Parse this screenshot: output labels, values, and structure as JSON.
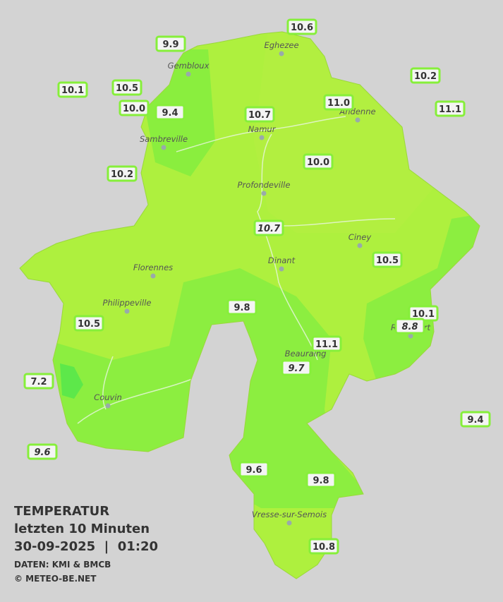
{
  "header": {
    "title": "TEMPERATUR",
    "subtitle": "letzten 10 Minuten",
    "timestamp": "30-09-2025  |  01:20",
    "source": "DATEN: KMI & BMCB",
    "copyright": "© METEO-BE.NET"
  },
  "cities": [
    "Eghezee",
    "Gembloux",
    "Andenne",
    "Namur",
    "Sambreville",
    "Profondeville",
    "Ciney",
    "Florennes",
    "Dinant",
    "Philippeville",
    "Rochefort",
    "Beauraing",
    "Couvin",
    "Vresse-sur-Semois"
  ],
  "stations": [
    {
      "label": "10.6",
      "italic": false
    },
    {
      "label": "9.9",
      "italic": false
    },
    {
      "label": "10.2",
      "italic": false
    },
    {
      "label": "10.1",
      "italic": false
    },
    {
      "label": "10.5",
      "italic": false
    },
    {
      "label": "10.0",
      "italic": false
    },
    {
      "label": "9.4",
      "italic": false
    },
    {
      "label": "11.0",
      "italic": false
    },
    {
      "label": "11.1",
      "italic": false
    },
    {
      "label": "10.7",
      "italic": false
    },
    {
      "label": "10.0",
      "italic": false
    },
    {
      "label": "10.2",
      "italic": false
    },
    {
      "label": "10.7",
      "italic": true
    },
    {
      "label": "10.5",
      "italic": false
    },
    {
      "label": "9.8",
      "italic": false
    },
    {
      "label": "10.1",
      "italic": false
    },
    {
      "label": "8.8",
      "italic": true
    },
    {
      "label": "10.5",
      "italic": false
    },
    {
      "label": "11.1",
      "italic": false
    },
    {
      "label": "9.7",
      "italic": true
    },
    {
      "label": "7.2",
      "italic": false
    },
    {
      "label": "9.4",
      "italic": false
    },
    {
      "label": "9.6",
      "italic": true
    },
    {
      "label": "9.6",
      "italic": false
    },
    {
      "label": "9.8",
      "italic": false
    },
    {
      "label": "10.8",
      "italic": false
    }
  ]
}
